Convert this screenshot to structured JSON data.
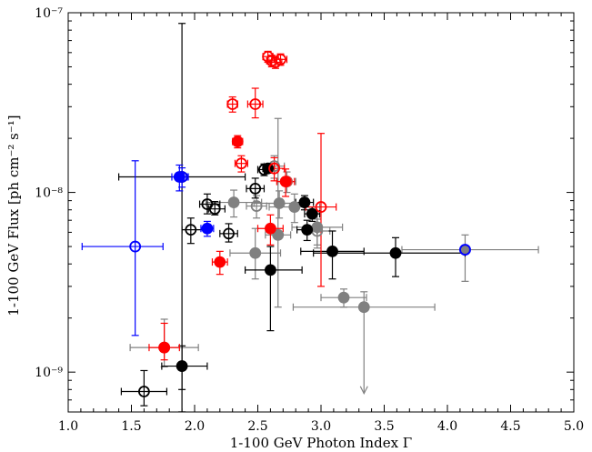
{
  "chart_data": {
    "type": "scatter",
    "title": "",
    "xlabel": "1-100 GeV Photon Index Γ",
    "ylabel": "1-100 GeV Flux [ph cm⁻² s⁻¹]",
    "xlim": [
      1.0,
      5.0
    ],
    "ylim": [
      6e-10,
      1e-07
    ],
    "yscale": "log",
    "x_ticks": [
      1.0,
      1.5,
      2.0,
      2.5,
      3.0,
      3.5,
      4.0,
      4.5,
      5.0
    ],
    "x_tick_labels": [
      "1.0",
      "1.5",
      "2.0",
      "2.5",
      "3.0",
      "3.5",
      "4.0",
      "4.5",
      "5.0"
    ],
    "y_major_ticks": [
      1e-09,
      1e-08,
      1e-07
    ],
    "y_tick_labels": [
      "10⁻⁹",
      "10⁻⁸",
      "10⁻⁷"
    ],
    "grid": false,
    "legend": "none",
    "colors": {
      "black": "#000000",
      "red": "#ff0000",
      "blue": "#0000ff",
      "gray": "#808080",
      "edge_red": "#cc4444"
    },
    "series": [
      {
        "color": "black",
        "points": [
          {
            "x": 1.6,
            "y": 7.8e-10,
            "xerr": [
              0.18,
              0.18
            ],
            "yerr": [
              1.3e-10,
              2.4e-10
            ],
            "filled": false
          },
          {
            "x": 1.9,
            "y": 1.08e-09,
            "xerr": [
              0.16,
              0.2
            ],
            "yerr": [
              2.8e-10,
              3.2e-10
            ],
            "filled": true
          },
          {
            "x": 1.97,
            "y": 6.2e-09,
            "xerr": [
              0.07,
              0.13
            ],
            "yerr": [
              1e-09,
              1e-09
            ],
            "filled": false
          },
          {
            "x": 2.1,
            "y": 8.6e-09,
            "xerr": [
              0.06,
              0.1
            ],
            "yerr": [
              1e-09,
              1.2e-09
            ],
            "filled": false
          },
          {
            "x": 2.16,
            "y": 8.1e-09,
            "xerr": [
              0.05,
              0.08
            ],
            "yerr": [
              6e-10,
              8e-10
            ],
            "filled": false
          },
          {
            "x": 2.27,
            "y": 5.9e-09,
            "xerr": [
              0.07,
              0.07
            ],
            "yerr": [
              6e-10,
              8e-10
            ],
            "filled": false
          },
          {
            "x": 2.48,
            "y": 1.05e-08,
            "xerr": [
              0.07,
              0.07
            ],
            "yerr": [
              1.2e-09,
              1.5e-09
            ],
            "filled": false
          },
          {
            "x": 2.55,
            "y": 1.34e-08,
            "xerr": [
              0.05,
              0.06
            ],
            "yerr": [
              1e-09,
              1e-09
            ],
            "filled": false
          },
          {
            "x": 2.58,
            "y": 1.36e-08,
            "xerr": [
              0.04,
              0.05
            ],
            "yerr": [
              8e-10,
              8e-10
            ],
            "filled": true
          },
          {
            "x": 2.6,
            "y": 3.7e-09,
            "xerr": [
              0.2,
              0.25
            ],
            "yerr": [
              2e-09,
              1.3e-09
            ],
            "filled": true
          },
          {
            "x": 2.87,
            "y": 8.8e-09,
            "xerr": [
              0.07,
              0.07
            ],
            "yerr": [
              8e-10,
              8e-10
            ],
            "filled": true
          },
          {
            "x": 2.93,
            "y": 7.6e-09,
            "xerr": [
              0.06,
              0.06
            ],
            "yerr": [
              7e-10,
              7e-10
            ],
            "filled": true
          },
          {
            "x": 2.89,
            "y": 6.2e-09,
            "xerr": [
              0.08,
              0.08
            ],
            "yerr": [
              8e-10,
              8e-10
            ],
            "filled": true
          },
          {
            "x": 3.09,
            "y": 4.7e-09,
            "xerr": [
              0.25,
              0.25
            ],
            "yerr": [
              1.4e-09,
              1.4e-09
            ],
            "filled": true
          },
          {
            "x": 3.59,
            "y": 4.6e-09,
            "xerr": [
              0.65,
              0.55
            ],
            "yerr": [
              1.2e-09,
              1e-09
            ],
            "filled": true
          },
          {
            "x": 1.9,
            "y": 1.22e-08,
            "xerr": [
              0.5,
              0.5
            ],
            "yerr": [
              1.2e-08,
              7.5e-08
            ],
            "filled": false
          }
        ]
      },
      {
        "color": "red",
        "points": [
          {
            "x": 1.76,
            "y": 1.37e-09,
            "xerr": [
              0.12,
              0.12
            ],
            "yerr": [
              2e-10,
              5e-10
            ],
            "filled": true
          },
          {
            "x": 2.2,
            "y": 4.1e-09,
            "xerr": [
              0.06,
              0.06
            ],
            "yerr": [
              6e-10,
              6e-10
            ],
            "filled": true
          },
          {
            "x": 2.3,
            "y": 3.1e-08,
            "xerr": [
              0.04,
              0.04
            ],
            "yerr": [
              3e-09,
              3e-09
            ],
            "filled": false
          },
          {
            "x": 2.34,
            "y": 1.92e-08,
            "xerr": [
              0.04,
              0.04
            ],
            "yerr": [
              1.5e-09,
              1.5e-09
            ],
            "filled": true
          },
          {
            "x": 2.37,
            "y": 1.45e-08,
            "xerr": [
              0.05,
              0.05
            ],
            "yerr": [
              1.5e-09,
              1.5e-09
            ],
            "filled": false
          },
          {
            "x": 2.48,
            "y": 3.1e-08,
            "xerr": [
              0.06,
              0.06
            ],
            "yerr": [
              5e-09,
              7e-09
            ],
            "filled": false
          },
          {
            "x": 2.58,
            "y": 5.7e-08,
            "xerr": [
              0.04,
              0.04
            ],
            "yerr": [
              4e-09,
              4e-09
            ],
            "filled": false
          },
          {
            "x": 2.61,
            "y": 5.4e-08,
            "xerr": [
              0.04,
              0.04
            ],
            "yerr": [
              4e-09,
              4e-09
            ],
            "filled": false
          },
          {
            "x": 2.64,
            "y": 5.3e-08,
            "xerr": [
              0.05,
              0.05
            ],
            "yerr": [
              4e-09,
              4e-09
            ],
            "filled": false
          },
          {
            "x": 2.68,
            "y": 5.5e-08,
            "xerr": [
              0.05,
              0.05
            ],
            "yerr": [
              4e-09,
              4e-09
            ],
            "filled": false
          },
          {
            "x": 2.63,
            "y": 1.36e-08,
            "xerr": [
              0.08,
              0.08
            ],
            "yerr": [
              2e-09,
              2e-09
            ],
            "filled": false
          },
          {
            "x": 2.72,
            "y": 1.15e-08,
            "xerr": [
              0.07,
              0.07
            ],
            "yerr": [
              2e-09,
              2e-09
            ],
            "filled": true
          },
          {
            "x": 2.6,
            "y": 6.3e-09,
            "xerr": [
              0.1,
              0.1
            ],
            "yerr": [
              1.2e-09,
              1.2e-09
            ],
            "filled": true
          },
          {
            "x": 3.0,
            "y": 8.3e-09,
            "xerr": [
              0.12,
              0.12
            ],
            "yerr": [
              5.3e-09,
              1.3e-08
            ],
            "filled": false
          }
        ]
      },
      {
        "color": "blue",
        "points": [
          {
            "x": 1.53,
            "y": 5e-09,
            "xerr": [
              0.42,
              0.22
            ],
            "yerr": [
              3.4e-09,
              1e-08
            ],
            "filled": false
          },
          {
            "x": 1.88,
            "y": 1.22e-08,
            "xerr": [
              0.06,
              0.06
            ],
            "yerr": [
              2e-09,
              2e-09
            ],
            "filled": true
          },
          {
            "x": 1.9,
            "y": 1.22e-08,
            "xerr": [
              0.05,
              0.05
            ],
            "yerr": [
              1.5e-09,
              1.5e-09
            ],
            "filled": false
          },
          {
            "x": 2.1,
            "y": 6.3e-09,
            "xerr": [
              0.05,
              0.05
            ],
            "yerr": [
              6e-10,
              6e-10
            ],
            "filled": true
          },
          {
            "x": 4.14,
            "y": 4.8e-09,
            "xerr": [
              0.0,
              0.0
            ],
            "yerr": [
              0.0,
              0.0
            ],
            "filled": true
          }
        ]
      },
      {
        "color": "gray",
        "points": [
          {
            "x": 1.76,
            "y": 1.37e-09,
            "xerr": [
              0.27,
              0.27
            ],
            "yerr": [
              3e-10,
              6e-10
            ],
            "filled": true
          },
          {
            "x": 2.31,
            "y": 8.8e-09,
            "xerr": [
              0.22,
              0.22
            ],
            "yerr": [
              1.5e-09,
              1.5e-09
            ],
            "filled": true
          },
          {
            "x": 2.48,
            "y": 4.6e-09,
            "xerr": [
              0.2,
              0.2
            ],
            "yerr": [
              1.3e-09,
              1.7e-09
            ],
            "filled": true
          },
          {
            "x": 2.49,
            "y": 8.4e-09,
            "xerr": [
              0.08,
              0.08
            ],
            "yerr": [
              1.2e-09,
              1.2e-09
            ],
            "filled": false
          },
          {
            "x": 2.63,
            "y": 1.4e-08,
            "xerr": [
              0.08,
              0.08
            ],
            "yerr": [
              2e-09,
              2e-09
            ],
            "filled": false
          },
          {
            "x": 2.66,
            "y": 5.8e-09,
            "xerr": [
              0.1,
              0.1
            ],
            "yerr": [
              3.5e-09,
              2e-08
            ],
            "filled": true
          },
          {
            "x": 2.67,
            "y": 8.7e-09,
            "xerr": [
              0.2,
              0.2
            ],
            "yerr": [
              1.5e-09,
              1.5e-09
            ],
            "filled": true
          },
          {
            "x": 2.79,
            "y": 8.3e-09,
            "xerr": [
              0.2,
              0.2
            ],
            "yerr": [
              1.5e-09,
              1.5e-09
            ],
            "filled": true
          },
          {
            "x": 2.97,
            "y": 6.4e-09,
            "xerr": [
              0.2,
              0.2
            ],
            "yerr": [
              1.5e-09,
              1.5e-09
            ],
            "filled": true
          },
          {
            "x": 2.97,
            "y": 6.1e-09,
            "xerr": [
              0.1,
              0.1
            ],
            "yerr": [
              1e-09,
              1e-09
            ],
            "filled": false
          },
          {
            "x": 2.73,
            "y": 1.15e-08,
            "xerr": [
              0.07,
              0.07
            ],
            "yerr": [
              1.5e-09,
              1.5e-09
            ],
            "filled": true
          },
          {
            "x": 3.18,
            "y": 2.6e-09,
            "xerr": [
              0.18,
              0.18
            ],
            "yerr": [
              3e-10,
              3e-10
            ],
            "filled": true
          },
          {
            "x": 3.34,
            "y": 2.3e-09,
            "xerr": [
              0.56,
              0.56
            ],
            "yerr": [
              0,
              5e-10
            ],
            "filled": true,
            "upper_limit_arrow_to": 7.6e-10
          },
          {
            "x": 4.14,
            "y": 4.8e-09,
            "xerr": [
              0.5,
              0.58
            ],
            "yerr": [
              1.6e-09,
              1e-09
            ],
            "filled": true
          }
        ]
      }
    ]
  }
}
